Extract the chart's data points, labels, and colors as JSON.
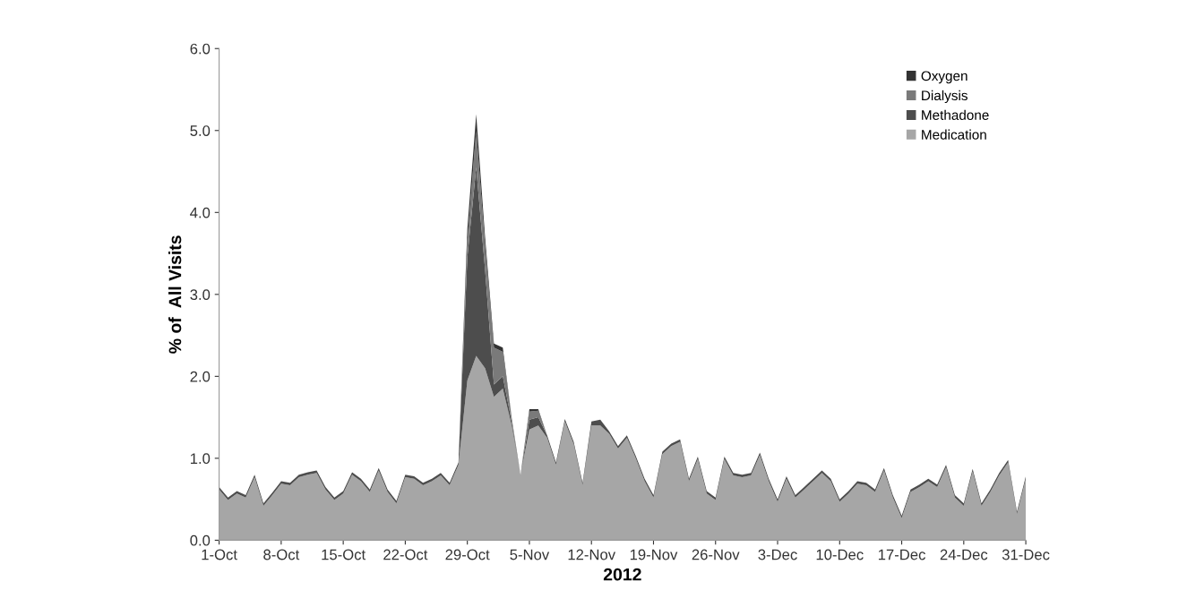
{
  "chart_data": {
    "type": "area",
    "stacked": true,
    "xlabel": "2012",
    "ylabel": "% of  All Visits",
    "x": [
      "2012-10-01",
      "2012-10-02",
      "2012-10-03",
      "2012-10-04",
      "2012-10-05",
      "2012-10-06",
      "2012-10-07",
      "2012-10-08",
      "2012-10-09",
      "2012-10-10",
      "2012-10-11",
      "2012-10-12",
      "2012-10-13",
      "2012-10-14",
      "2012-10-15",
      "2012-10-16",
      "2012-10-17",
      "2012-10-18",
      "2012-10-19",
      "2012-10-20",
      "2012-10-21",
      "2012-10-22",
      "2012-10-23",
      "2012-10-24",
      "2012-10-25",
      "2012-10-26",
      "2012-10-27",
      "2012-10-28",
      "2012-10-29",
      "2012-10-30",
      "2012-10-31",
      "2012-11-01",
      "2012-11-02",
      "2012-11-03",
      "2012-11-04",
      "2012-11-05",
      "2012-11-06",
      "2012-11-07",
      "2012-11-08",
      "2012-11-09",
      "2012-11-10",
      "2012-11-11",
      "2012-11-12",
      "2012-11-13",
      "2012-11-14",
      "2012-11-15",
      "2012-11-16",
      "2012-11-17",
      "2012-11-18",
      "2012-11-19",
      "2012-11-20",
      "2012-11-21",
      "2012-11-22",
      "2012-11-23",
      "2012-11-24",
      "2012-11-25",
      "2012-11-26",
      "2012-11-27",
      "2012-11-28",
      "2012-11-29",
      "2012-11-30",
      "2012-12-01",
      "2012-12-02",
      "2012-12-03",
      "2012-12-04",
      "2012-12-05",
      "2012-12-06",
      "2012-12-07",
      "2012-12-08",
      "2012-12-09",
      "2012-12-10",
      "2012-12-11",
      "2012-12-12",
      "2012-12-13",
      "2012-12-14",
      "2012-12-15",
      "2012-12-16",
      "2012-12-17",
      "2012-12-18",
      "2012-12-19",
      "2012-12-20",
      "2012-12-21",
      "2012-12-22",
      "2012-12-23",
      "2012-12-24",
      "2012-12-25",
      "2012-12-26",
      "2012-12-27",
      "2012-12-28",
      "2012-12-29",
      "2012-12-30",
      "2012-12-31"
    ],
    "series": [
      {
        "name": "Medication",
        "color": "#a6a6a6",
        "values": [
          0.62,
          0.49,
          0.57,
          0.52,
          0.77,
          0.42,
          0.55,
          0.69,
          0.67,
          0.77,
          0.8,
          0.82,
          0.62,
          0.49,
          0.57,
          0.8,
          0.72,
          0.59,
          0.85,
          0.59,
          0.45,
          0.77,
          0.75,
          0.67,
          0.72,
          0.79,
          0.67,
          0.92,
          1.95,
          2.25,
          2.1,
          1.75,
          1.85,
          1.4,
          0.8,
          1.35,
          1.4,
          1.25,
          0.92,
          1.45,
          1.17,
          0.67,
          1.4,
          1.4,
          1.3,
          1.12,
          1.25,
          1.0,
          0.72,
          0.52,
          1.05,
          1.15,
          1.2,
          0.72,
          0.99,
          0.57,
          0.49,
          0.99,
          0.79,
          0.77,
          0.79,
          1.04,
          0.72,
          0.47,
          0.75,
          0.52,
          0.62,
          0.72,
          0.82,
          0.72,
          0.47,
          0.57,
          0.69,
          0.67,
          0.59,
          0.85,
          0.52,
          0.27,
          0.59,
          0.65,
          0.72,
          0.65,
          0.89,
          0.52,
          0.42,
          0.84,
          0.42,
          0.59,
          0.79,
          0.95,
          0.32,
          0.75
        ]
      },
      {
        "name": "Methadone",
        "color": "#4d4d4d",
        "values": [
          0.03,
          0.03,
          0.03,
          0.03,
          0.03,
          0.03,
          0.03,
          0.03,
          0.03,
          0.03,
          0.03,
          0.03,
          0.03,
          0.03,
          0.03,
          0.03,
          0.03,
          0.03,
          0.03,
          0.03,
          0.03,
          0.03,
          0.03,
          0.03,
          0.03,
          0.03,
          0.03,
          0.03,
          1.5,
          2.3,
          1.2,
          0.15,
          0.15,
          0.05,
          0,
          0.12,
          0.1,
          0.03,
          0.03,
          0.03,
          0.03,
          0.03,
          0.05,
          0.07,
          0.03,
          0.03,
          0.03,
          0.03,
          0.03,
          0.03,
          0.03,
          0.03,
          0.03,
          0.03,
          0.03,
          0.03,
          0.03,
          0.03,
          0.03,
          0.03,
          0.03,
          0.03,
          0.03,
          0.03,
          0.03,
          0.03,
          0.03,
          0.03,
          0.03,
          0.03,
          0.03,
          0.03,
          0.03,
          0.03,
          0.03,
          0.03,
          0.03,
          0.03,
          0.03,
          0.03,
          0.03,
          0.03,
          0.03,
          0.03,
          0.03,
          0.03,
          0.03,
          0.03,
          0.03,
          0.03,
          0.03,
          0.03
        ]
      },
      {
        "name": "Dialysis",
        "color": "#7a7a7a",
        "values": [
          0,
          0,
          0,
          0,
          0,
          0,
          0,
          0,
          0,
          0,
          0,
          0,
          0,
          0,
          0,
          0,
          0,
          0,
          0,
          0,
          0,
          0,
          0,
          0,
          0,
          0,
          0,
          0,
          0.2,
          0.45,
          0.3,
          0.45,
          0.3,
          0.05,
          0,
          0.1,
          0.08,
          0,
          0,
          0,
          0,
          0,
          0,
          0,
          0,
          0,
          0,
          0,
          0,
          0,
          0,
          0,
          0,
          0,
          0,
          0,
          0,
          0,
          0,
          0,
          0,
          0,
          0,
          0,
          0,
          0,
          0,
          0,
          0,
          0,
          0,
          0,
          0,
          0,
          0,
          0,
          0,
          0,
          0,
          0,
          0,
          0,
          0,
          0,
          0,
          0,
          0,
          0,
          0,
          0,
          0,
          0
        ]
      },
      {
        "name": "Oxygen",
        "color": "#333333",
        "values": [
          0,
          0,
          0,
          0,
          0,
          0,
          0,
          0,
          0,
          0,
          0,
          0,
          0,
          0,
          0,
          0,
          0,
          0,
          0,
          0,
          0,
          0,
          0,
          0,
          0,
          0,
          0,
          0,
          0.15,
          0.2,
          0.1,
          0.05,
          0.05,
          0,
          0,
          0.03,
          0.02,
          0,
          0,
          0,
          0,
          0,
          0,
          0,
          0,
          0,
          0,
          0,
          0,
          0,
          0,
          0,
          0,
          0,
          0,
          0,
          0,
          0,
          0,
          0,
          0,
          0,
          0,
          0,
          0,
          0,
          0,
          0,
          0,
          0,
          0,
          0,
          0,
          0,
          0,
          0,
          0,
          0,
          0,
          0,
          0,
          0,
          0,
          0,
          0,
          0,
          0,
          0,
          0,
          0,
          0,
          0
        ]
      }
    ],
    "xlim": [
      "2012-10-01",
      "2012-12-31"
    ],
    "xticks": [
      {
        "value": "2012-10-01",
        "label": "1-Oct"
      },
      {
        "value": "2012-10-08",
        "label": "8-Oct"
      },
      {
        "value": "2012-10-15",
        "label": "15-Oct"
      },
      {
        "value": "2012-10-22",
        "label": "22-Oct"
      },
      {
        "value": "2012-10-29",
        "label": "29-Oct"
      },
      {
        "value": "2012-11-05",
        "label": "5-Nov"
      },
      {
        "value": "2012-11-12",
        "label": "12-Nov"
      },
      {
        "value": "2012-11-19",
        "label": "19-Nov"
      },
      {
        "value": "2012-11-26",
        "label": "26-Nov"
      },
      {
        "value": "2012-12-03",
        "label": "3-Dec"
      },
      {
        "value": "2012-12-10",
        "label": "10-Dec"
      },
      {
        "value": "2012-12-17",
        "label": "17-Dec"
      },
      {
        "value": "2012-12-24",
        "label": "24-Dec"
      },
      {
        "value": "2012-12-31",
        "label": "31-Dec"
      }
    ],
    "ylim": [
      0,
      6
    ],
    "yticks": [
      {
        "value": 0,
        "label": "0.0"
      },
      {
        "value": 1,
        "label": "1.0"
      },
      {
        "value": 2,
        "label": "2.0"
      },
      {
        "value": 3,
        "label": "3.0"
      },
      {
        "value": 4,
        "label": "4.0"
      },
      {
        "value": 5,
        "label": "5.0"
      },
      {
        "value": 6,
        "label": "6.0"
      }
    ],
    "grid": false,
    "legend": "top right"
  }
}
